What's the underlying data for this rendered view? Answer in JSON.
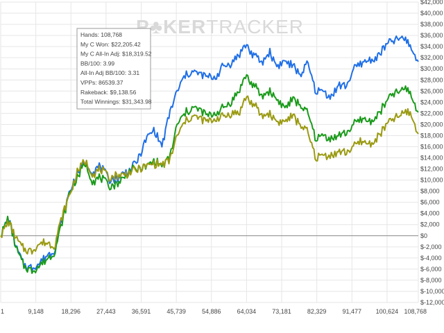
{
  "watermark": {
    "brand_left": "P",
    "brand_mid": "KER",
    "brand_right": "TRACKER"
  },
  "tooltip": {
    "lines": [
      "Hands: 108,768",
      "My C Won: $22,205.42",
      "My C All-In Adj: $18,319.52",
      "BB/100: 3.99",
      "All-In Adj BB/100: 3.31",
      "VPPs: 86539.37",
      "Rakeback: $9,138.56",
      "Total Winnings: $31,343.98"
    ]
  },
  "colors": {
    "total_winnings": "#1f6fe6",
    "my_c_won": "#1a9a1a",
    "all_in_adj": "#9a9a12",
    "zero_line": "#8a8a8a",
    "grid": "#e6e6e6"
  },
  "chart_data": {
    "type": "line",
    "title": "",
    "xlabel": "",
    "ylabel": "",
    "xlim": [
      1,
      108768
    ],
    "ylim": [
      -12000,
      42000
    ],
    "grid": true,
    "legend": "none",
    "x_ticks": [
      1,
      9148,
      18296,
      27443,
      36591,
      45739,
      54886,
      64034,
      73181,
      82329,
      91477,
      100624,
      108768
    ],
    "x_tick_labels": [
      "1",
      "9,148",
      "18,296",
      "27,443",
      "36,591",
      "45,739",
      "54,886",
      "64,034",
      "73,181",
      "82,329",
      "91,477",
      "100,624",
      "108,768"
    ],
    "y_ticks": [
      -12000,
      -10000,
      -8000,
      -6000,
      -4000,
      -2000,
      0,
      2000,
      4000,
      6000,
      8000,
      10000,
      12000,
      14000,
      16000,
      18000,
      20000,
      22000,
      24000,
      26000,
      28000,
      30000,
      32000,
      34000,
      36000,
      38000,
      40000,
      42000
    ],
    "y_tick_labels": [
      "$-12,000",
      "$-10,000",
      "$-8,000",
      "$-6,000",
      "$-4,000",
      "$-2,000",
      "$0",
      "$2,000",
      "$4,000",
      "$6,000",
      "$8,000",
      "$10,000",
      "$12,000",
      "$14,000",
      "$16,000",
      "$18,000",
      "$20,000",
      "$22,000",
      "$24,000",
      "$26,000",
      "$28,000",
      "$30,000",
      "$32,000",
      "$34,000",
      "$36,000",
      "$38,000",
      "$40,000",
      "$42,000"
    ],
    "series": [
      {
        "name": "Total Winnings",
        "x": [
          1,
          2000,
          4000,
          6000,
          8000,
          10000,
          12000,
          14000,
          16000,
          18000,
          20000,
          22000,
          24000,
          26000,
          28000,
          30000,
          32000,
          34000,
          36000,
          38000,
          40000,
          42000,
          44000,
          46000,
          48000,
          50000,
          52000,
          54000,
          56000,
          58000,
          60000,
          62000,
          64000,
          65000,
          66000,
          68000,
          70000,
          72000,
          74000,
          76000,
          78000,
          80000,
          82000,
          84000,
          86000,
          88000,
          90000,
          92000,
          94000,
          96000,
          98000,
          100000,
          102000,
          104000,
          106000,
          107000,
          108768
        ],
        "y": [
          0,
          3200,
          -2000,
          -5200,
          -5800,
          -5000,
          -3500,
          -2500,
          3000,
          8000,
          11200,
          13200,
          11500,
          12600,
          10200,
          10200,
          11200,
          12000,
          14000,
          17500,
          19000,
          16000,
          22000,
          26000,
          28800,
          29500,
          29000,
          28500,
          28500,
          30500,
          31000,
          32500,
          34500,
          33000,
          32500,
          31000,
          33000,
          30500,
          31500,
          30500,
          29000,
          31000,
          26000,
          26000,
          25000,
          27000,
          27000,
          30000,
          31000,
          31500,
          32000,
          34000,
          35000,
          35500,
          35000,
          33500,
          31300
        ]
      },
      {
        "name": "My C Won",
        "x": [
          1,
          2000,
          4000,
          6000,
          8000,
          10000,
          12000,
          14000,
          16000,
          18000,
          20000,
          22000,
          24000,
          26000,
          28000,
          30000,
          32000,
          34000,
          36000,
          38000,
          40000,
          42000,
          44000,
          46000,
          48000,
          50000,
          52000,
          54000,
          56000,
          58000,
          60000,
          62000,
          64000,
          65000,
          66000,
          68000,
          70000,
          72000,
          74000,
          76000,
          78000,
          80000,
          82000,
          84000,
          86000,
          88000,
          90000,
          92000,
          94000,
          96000,
          98000,
          100000,
          102000,
          104000,
          106000,
          107000,
          108768
        ],
        "y": [
          0,
          3300,
          -2200,
          -5500,
          -6300,
          -5500,
          -4200,
          -3000,
          2500,
          7800,
          10500,
          13000,
          9800,
          10500,
          9000,
          9200,
          10400,
          11800,
          12000,
          12500,
          13500,
          12500,
          14000,
          20000,
          22000,
          23000,
          22500,
          21500,
          22000,
          23000,
          24000,
          26000,
          29000,
          27500,
          27000,
          25000,
          26000,
          24500,
          23000,
          24500,
          23500,
          22000,
          17500,
          18000,
          17500,
          18000,
          18500,
          20000,
          21000,
          20500,
          21500,
          23500,
          25500,
          26000,
          26500,
          25000,
          22200
        ]
      },
      {
        "name": "My C All-In Adj",
        "x": [
          1,
          2000,
          4000,
          6000,
          8000,
          10000,
          12000,
          14000,
          16000,
          18000,
          20000,
          22000,
          24000,
          26000,
          28000,
          30000,
          32000,
          34000,
          36000,
          38000,
          40000,
          42000,
          44000,
          46000,
          48000,
          50000,
          52000,
          54000,
          56000,
          58000,
          60000,
          62000,
          64000,
          65000,
          66000,
          68000,
          70000,
          72000,
          74000,
          76000,
          78000,
          80000,
          82000,
          84000,
          86000,
          88000,
          90000,
          92000,
          94000,
          96000,
          98000,
          100000,
          102000,
          104000,
          106000,
          107000,
          108768
        ],
        "y": [
          0,
          2500,
          -500,
          -2500,
          -2800,
          -1500,
          -1200,
          -1800,
          3500,
          7500,
          11500,
          13500,
          11000,
          12000,
          10500,
          10800,
          11000,
          11500,
          12000,
          12500,
          13000,
          12800,
          13500,
          18000,
          20500,
          21500,
          21000,
          20500,
          21000,
          21500,
          22000,
          22000,
          25000,
          24000,
          23500,
          21500,
          22000,
          20500,
          20500,
          21500,
          20000,
          18500,
          14000,
          14500,
          14500,
          15000,
          15000,
          16000,
          17000,
          16500,
          17500,
          19500,
          21000,
          21500,
          22500,
          21500,
          18300
        ]
      }
    ]
  }
}
